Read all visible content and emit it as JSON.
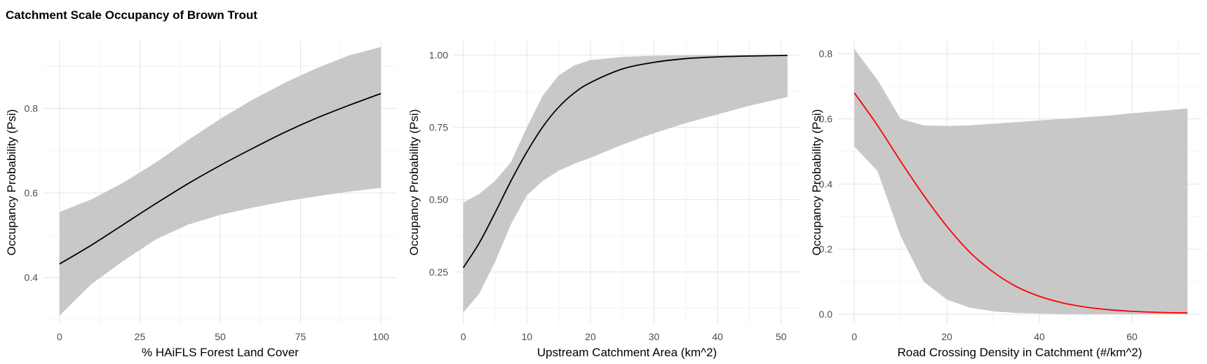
{
  "figure": {
    "title": "Catchment Scale Occupancy of Brown Trout"
  },
  "chart_data": [
    {
      "type": "line",
      "title": "",
      "xlabel": "% HAiFLS Forest Land Cover",
      "ylabel": "Occupancy Probability (Psi)",
      "xlim": [
        -5,
        105
      ],
      "ylim": [
        0.29,
        0.96
      ],
      "x_ticks": [
        0,
        25,
        50,
        75,
        100
      ],
      "x_tick_labels": [
        "0",
        "25",
        "50",
        "75",
        "100"
      ],
      "y_ticks": [
        0.4,
        0.6,
        0.8
      ],
      "y_tick_labels": [
        "0.4",
        "0.6",
        "0.8"
      ],
      "line_color": "#000000",
      "band_color": "#c8c8c8",
      "grid": true,
      "x": [
        0,
        10,
        20,
        30,
        40,
        50,
        60,
        70,
        80,
        90,
        100
      ],
      "fit": [
        0.432,
        0.477,
        0.526,
        0.575,
        0.622,
        0.665,
        0.705,
        0.743,
        0.777,
        0.807,
        0.835
      ],
      "lower": [
        0.31,
        0.385,
        0.44,
        0.49,
        0.525,
        0.548,
        0.565,
        0.58,
        0.592,
        0.603,
        0.612
      ],
      "upper": [
        0.555,
        0.585,
        0.625,
        0.672,
        0.725,
        0.775,
        0.82,
        0.86,
        0.895,
        0.925,
        0.945
      ]
    },
    {
      "type": "line",
      "title": "",
      "xlabel": "Upstream Catchment Area (km^2)",
      "ylabel": "Occupancy Probability (Psi)",
      "xlim": [
        -1.5,
        53
      ],
      "ylim": [
        0.07,
        1.05
      ],
      "x_ticks": [
        0,
        10,
        20,
        30,
        40,
        50
      ],
      "x_tick_labels": [
        "0",
        "10",
        "20",
        "30",
        "40",
        "50"
      ],
      "y_ticks": [
        0.25,
        0.5,
        0.75,
        1.0
      ],
      "y_tick_labels": [
        "0.25",
        "0.50",
        "0.75",
        "1.00"
      ],
      "line_color": "#000000",
      "band_color": "#c8c8c8",
      "grid": true,
      "x": [
        0,
        2.5,
        5,
        7.5,
        10,
        12.5,
        15,
        17.5,
        20,
        25,
        30,
        35,
        40,
        45,
        51
      ],
      "fit": [
        0.265,
        0.35,
        0.455,
        0.565,
        0.665,
        0.752,
        0.82,
        0.87,
        0.905,
        0.952,
        0.975,
        0.988,
        0.994,
        0.997,
        0.999
      ],
      "lower": [
        0.11,
        0.175,
        0.285,
        0.415,
        0.515,
        0.565,
        0.6,
        0.625,
        0.645,
        0.69,
        0.73,
        0.765,
        0.795,
        0.825,
        0.855
      ],
      "upper": [
        0.49,
        0.52,
        0.565,
        0.63,
        0.75,
        0.86,
        0.93,
        0.965,
        0.983,
        0.994,
        0.998,
        0.999,
        1.0,
        1.0,
        1.0
      ]
    },
    {
      "type": "line",
      "title": "",
      "xlabel": "Road Crossing Density in Catchment (#/km^2)",
      "ylabel": "Occupancy Probability (Psi)",
      "xlim": [
        -3.5,
        75
      ],
      "ylim": [
        -0.03,
        0.84
      ],
      "x_ticks": [
        0,
        20,
        40,
        60
      ],
      "x_tick_labels": [
        "0",
        "20",
        "40",
        "60"
      ],
      "y_ticks": [
        0.0,
        0.2,
        0.4,
        0.6,
        0.8
      ],
      "y_tick_labels": [
        "0.0",
        "0.2",
        "0.4",
        "0.6",
        "0.8"
      ],
      "line_color": "#ff0000",
      "band_color": "#c8c8c8",
      "grid": true,
      "x": [
        0,
        5,
        10,
        15,
        20,
        25,
        30,
        35,
        40,
        45,
        50,
        55,
        60,
        65,
        72
      ],
      "fit": [
        0.68,
        0.58,
        0.47,
        0.365,
        0.27,
        0.19,
        0.13,
        0.085,
        0.055,
        0.035,
        0.022,
        0.014,
        0.009,
        0.006,
        0.004
      ],
      "lower": [
        0.515,
        0.44,
        0.24,
        0.1,
        0.045,
        0.02,
        0.009,
        0.004,
        0.002,
        0.001,
        0.0,
        0.0,
        0.0,
        0.0,
        0.0
      ],
      "upper": [
        0.815,
        0.72,
        0.6,
        0.58,
        0.578,
        0.58,
        0.585,
        0.59,
        0.595,
        0.6,
        0.605,
        0.61,
        0.617,
        0.623,
        0.632
      ]
    }
  ]
}
